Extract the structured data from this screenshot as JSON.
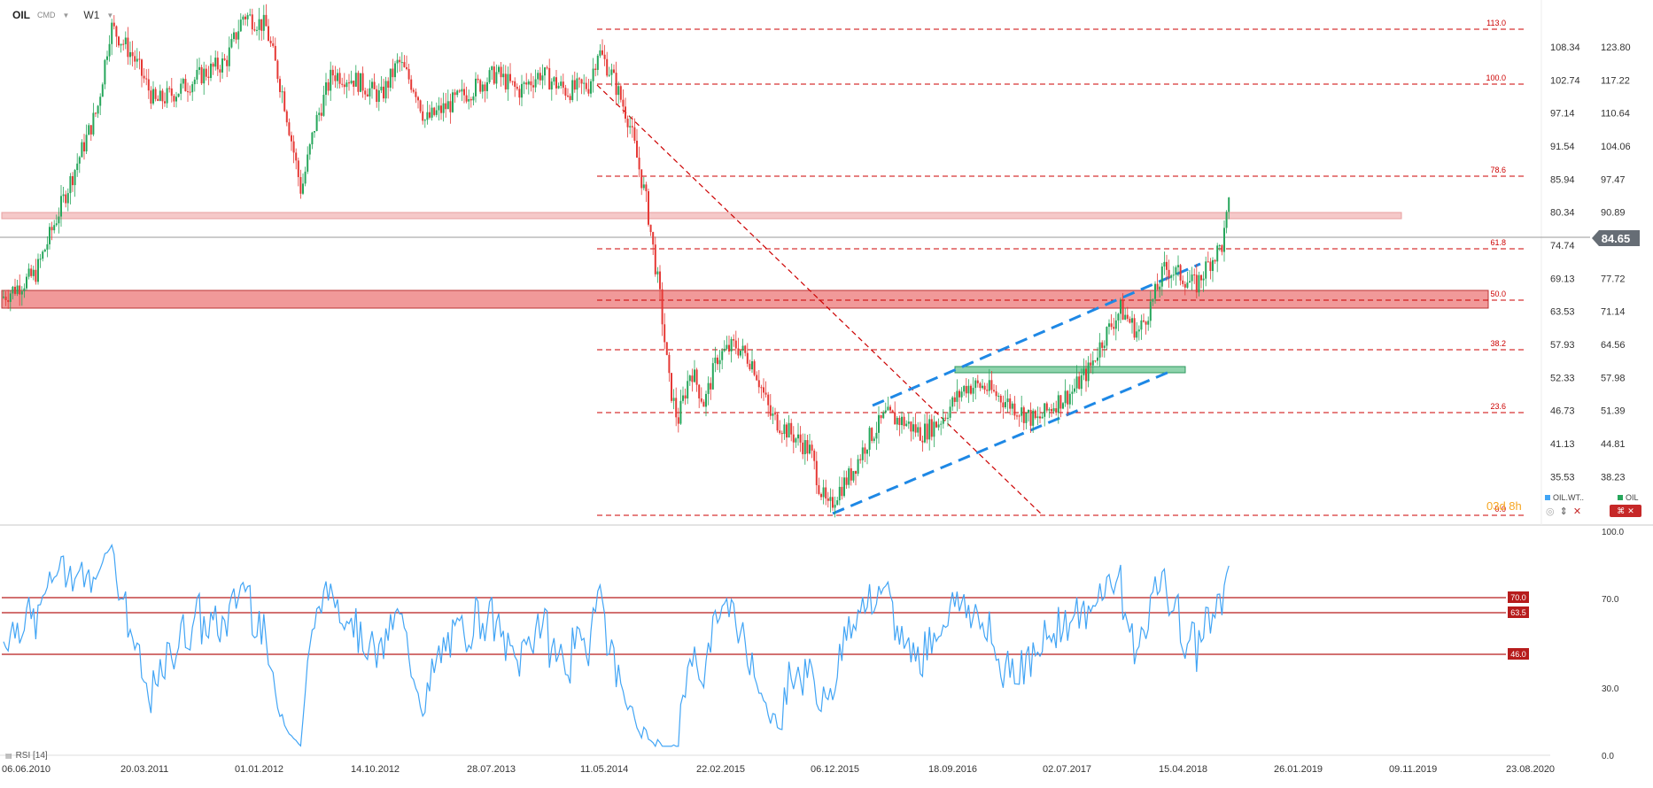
{
  "header": {
    "symbol": "OIL",
    "source": "CMD",
    "timeframe": "W1"
  },
  "price_axis": {
    "inner": [
      "108.34",
      "102.74",
      "97.14",
      "91.54",
      "85.94",
      "80.34",
      "74.74",
      "69.13",
      "63.53",
      "57.93",
      "52.33",
      "46.73",
      "41.13",
      "35.53"
    ],
    "outer": [
      "123.80",
      "117.22",
      "110.64",
      "104.06",
      "97.47",
      "90.89",
      "84.65",
      "77.72",
      "71.14",
      "64.56",
      "57.98",
      "51.39",
      "44.81",
      "38.23"
    ],
    "current": "84.65"
  },
  "fib_levels": [
    "113.0",
    "100.0",
    "78.6",
    "61.8",
    "50.0",
    "38.2",
    "23.6",
    "0.0"
  ],
  "countdown": "03d 8h",
  "legend": {
    "left": "OIL.WT..",
    "right": "OIL"
  },
  "rsi": {
    "label": "RSI [14]",
    "axis": [
      "100.0",
      "70.0",
      "30.0",
      "0.0"
    ],
    "levels": [
      "70.0",
      "63.5",
      "46.0"
    ]
  },
  "x_axis": [
    "06.06.2010",
    "20.03.2011",
    "01.01.2012",
    "14.10.2012",
    "28.07.2013",
    "11.05.2014",
    "22.02.2015",
    "06.12.2015",
    "18.09.2016",
    "02.07.2017",
    "15.04.2018",
    "26.01.2019",
    "09.11.2019",
    "23.08.2020"
  ],
  "colors": {
    "up": "#26a65b",
    "down": "#e53935",
    "fib": "#cc0000",
    "channel": "#1e88e5",
    "zone": "#ee8a8a",
    "rsi": "#42a5f5",
    "rsi_level": "#b71c1c"
  },
  "icons": {
    "settings": "settings-icon",
    "close": "close-icon",
    "sort": "sort-icon"
  }
}
